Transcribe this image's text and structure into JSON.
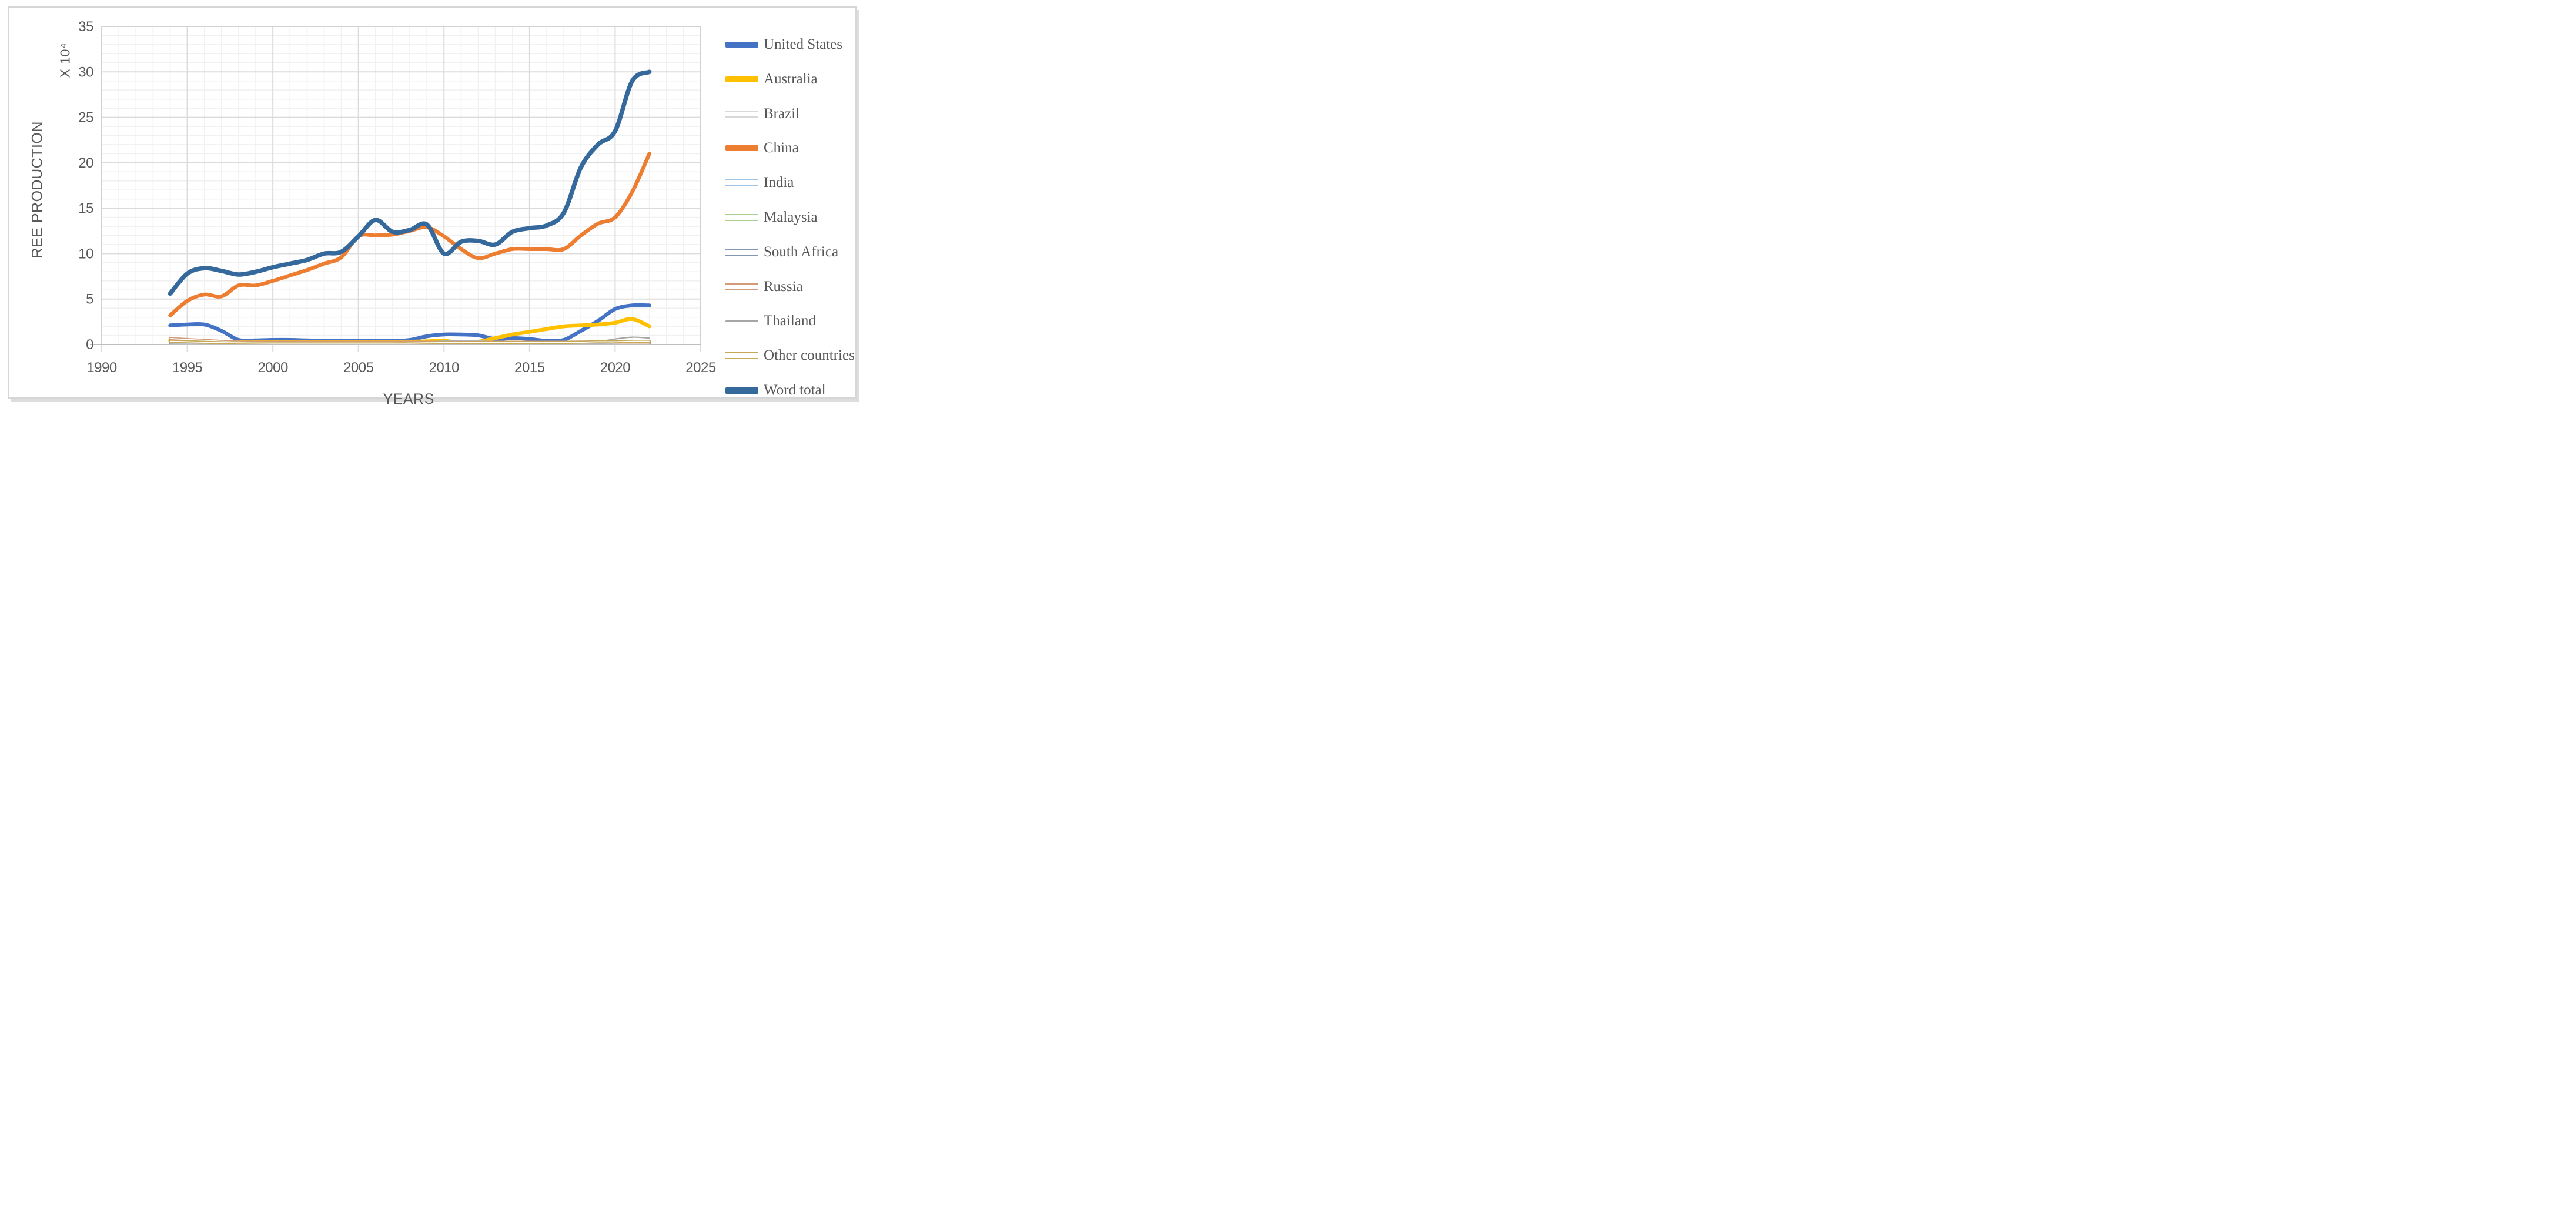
{
  "chart_data": {
    "type": "line",
    "title": "",
    "xlabel": "YEARS",
    "ylabel": "REE PRODUCTION",
    "y_multiplier_label": "X 10⁴",
    "xlim": [
      1990,
      2025
    ],
    "ylim": [
      0,
      35
    ],
    "x_major_ticks": [
      1990,
      1995,
      2000,
      2005,
      2010,
      2015,
      2020,
      2025
    ],
    "y_major_ticks": [
      0,
      5,
      10,
      15,
      20,
      25,
      30,
      35
    ],
    "minor_grid_step_x": 1,
    "minor_grid_step_y": 1,
    "grid": true,
    "smoothed_lines": true,
    "legend_position": "right",
    "colors": {
      "tick_text": "#595959",
      "minor_grid": "#F1F1F1",
      "major_grid": "#DBDBDB",
      "plot_border": "#D2D2D2",
      "axis_line": "#BFBFBF"
    },
    "x": [
      1994,
      1995,
      1996,
      1997,
      1998,
      1999,
      2000,
      2001,
      2002,
      2003,
      2004,
      2005,
      2006,
      2007,
      2008,
      2009,
      2010,
      2011,
      2012,
      2013,
      2014,
      2015,
      2016,
      2017,
      2018,
      2019,
      2020,
      2021,
      2022
    ],
    "series": [
      {
        "name": "United States",
        "color": "#4472C4",
        "style": "thick",
        "values": [
          2.1,
          2.2,
          2.2,
          1.5,
          0.5,
          0.45,
          0.5,
          0.5,
          0.45,
          0.4,
          0.4,
          0.4,
          0.4,
          0.4,
          0.5,
          0.9,
          1.1,
          1.1,
          1.0,
          0.6,
          0.7,
          0.6,
          0.4,
          0.5,
          1.5,
          2.6,
          3.9,
          4.3,
          4.3
        ]
      },
      {
        "name": "Australia",
        "color": "#FFC000",
        "style": "thick",
        "values": [
          0.45,
          0.4,
          0.35,
          0.3,
          0.3,
          0.3,
          0.3,
          0.3,
          0.3,
          0.25,
          0.3,
          0.3,
          0.3,
          0.3,
          0.3,
          0.35,
          0.4,
          0.2,
          0.3,
          0.7,
          1.1,
          1.4,
          1.7,
          2.0,
          2.1,
          2.2,
          2.4,
          2.8,
          2.0
        ]
      },
      {
        "name": "Brazil",
        "color": "#D8D8D8",
        "style": "double",
        "values": [
          0.1,
          0.08,
          0.05,
          0.05,
          0.05,
          0.05,
          0.05,
          0.05,
          0.05,
          0.05,
          0.05,
          0.05,
          0.05,
          0.05,
          0.05,
          0.05,
          0.05,
          0.1,
          0.15,
          0.1,
          0.05,
          0.05,
          0.1,
          0.1,
          0.1,
          0.07,
          0.06,
          0.05,
          0.05
        ]
      },
      {
        "name": "China",
        "color": "#ED7D31",
        "style": "thick",
        "values": [
          3.2,
          4.8,
          5.5,
          5.3,
          6.5,
          6.5,
          7.0,
          7.6,
          8.2,
          8.9,
          9.6,
          11.9,
          12.0,
          12.1,
          12.5,
          12.9,
          11.9,
          10.5,
          9.5,
          10.0,
          10.5,
          10.5,
          10.5,
          10.5,
          12.0,
          13.3,
          14.0,
          16.8,
          21.0
        ]
      },
      {
        "name": "India",
        "color": "#9DC3E6",
        "style": "double",
        "values": [
          0.25,
          0.25,
          0.25,
          0.25,
          0.25,
          0.25,
          0.25,
          0.25,
          0.25,
          0.25,
          0.25,
          0.25,
          0.25,
          0.25,
          0.25,
          0.25,
          0.28,
          0.3,
          0.29,
          0.25,
          0.2,
          0.2,
          0.2,
          0.2,
          0.25,
          0.3,
          0.3,
          0.29,
          0.29
        ]
      },
      {
        "name": "Malaysia",
        "color": "#A9D18E",
        "style": "double",
        "values": [
          0.15,
          0.12,
          0.1,
          0.08,
          0.06,
          0.05,
          0.05,
          0.05,
          0.05,
          0.05,
          0.05,
          0.05,
          0.05,
          0.05,
          0.05,
          0.05,
          0.03,
          0.03,
          0.03,
          0.04,
          0.04,
          0.04,
          0.03,
          0.03,
          0.03,
          0.03,
          0.04,
          0.06,
          0.08
        ]
      },
      {
        "name": "South Africa",
        "color": "#8497B0",
        "style": "double",
        "values": [
          0.05,
          0.05,
          0.05,
          0.04,
          0.03,
          0.02,
          0.02,
          0.02,
          0.02,
          0.02,
          0.02,
          0.02,
          0.02,
          0.02,
          0.02,
          0.02,
          0.02,
          0.02,
          0.02,
          0.02,
          0.02,
          0.02,
          0.02,
          0.02,
          0.02,
          0.02,
          0.03,
          0.06,
          0.1
        ]
      },
      {
        "name": "Russia",
        "color": "#D09B76",
        "style": "double",
        "values": [
          0.65,
          0.55,
          0.45,
          0.35,
          0.28,
          0.26,
          0.26,
          0.26,
          0.26,
          0.26,
          0.26,
          0.26,
          0.26,
          0.26,
          0.26,
          0.26,
          0.26,
          0.26,
          0.26,
          0.26,
          0.26,
          0.26,
          0.26,
          0.26,
          0.27,
          0.27,
          0.27,
          0.26,
          0.26
        ]
      },
      {
        "name": "Thailand",
        "color": "#A6A6A6",
        "style": "thin",
        "values": [
          0.02,
          0.02,
          0.02,
          0.02,
          0.02,
          0.02,
          0.02,
          0.02,
          0.02,
          0.02,
          0.02,
          0.02,
          0.02,
          0.02,
          0.05,
          0.2,
          0.35,
          0.2,
          0.12,
          0.1,
          0.15,
          0.2,
          0.15,
          0.15,
          0.2,
          0.3,
          0.6,
          0.8,
          0.7
        ]
      },
      {
        "name": "Other countries",
        "color": "#C5A957",
        "style": "double",
        "values": [
          0.35,
          0.3,
          0.25,
          0.2,
          0.18,
          0.16,
          0.15,
          0.15,
          0.15,
          0.15,
          0.15,
          0.15,
          0.15,
          0.15,
          0.15,
          0.18,
          0.2,
          0.2,
          0.2,
          0.2,
          0.2,
          0.2,
          0.2,
          0.22,
          0.25,
          0.3,
          0.3,
          0.35,
          0.35
        ]
      },
      {
        "name": "Word total",
        "color": "#35689B",
        "style": "extra-thick",
        "values": [
          5.6,
          7.8,
          8.4,
          8.1,
          7.7,
          8.0,
          8.5,
          8.9,
          9.3,
          10.0,
          10.2,
          11.9,
          13.7,
          12.4,
          12.6,
          13.2,
          10.0,
          11.3,
          11.4,
          11.0,
          12.4,
          12.8,
          13.1,
          14.5,
          19.5,
          22.0,
          23.5,
          29.0,
          30.0
        ]
      }
    ]
  }
}
